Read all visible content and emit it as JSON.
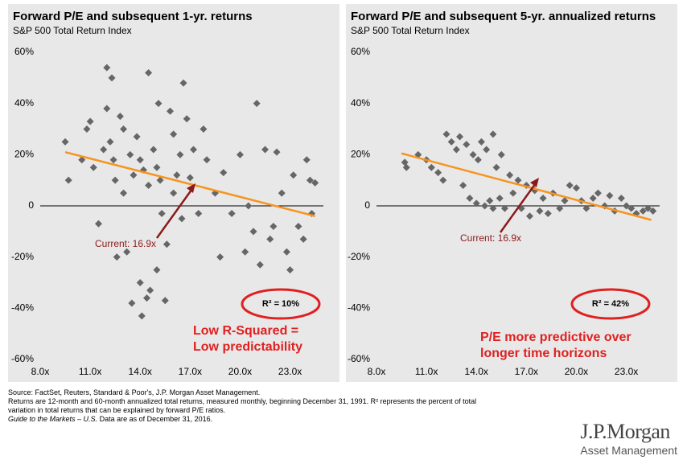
{
  "chart_data": [
    {
      "type": "scatter",
      "title": "Forward P/E and subsequent 1-yr. returns",
      "subtitle": "S&P 500 Total Return Index",
      "color": "#666666",
      "x": [
        9.5,
        9.7,
        10.5,
        10.8,
        11,
        11.2,
        11.5,
        11.8,
        12,
        12.2,
        12,
        12.3,
        12.4,
        12.5,
        12.6,
        12.8,
        13,
        13,
        13.2,
        13.4,
        13.5,
        13.6,
        13.8,
        14,
        14,
        14.1,
        14.2,
        14.4,
        14.5,
        14.5,
        14.6,
        14.8,
        15,
        15,
        15.1,
        15.2,
        15.3,
        15.5,
        15.6,
        15.8,
        16,
        16,
        16.2,
        16.4,
        16.5,
        16.6,
        16.8,
        17,
        17.2,
        17.5,
        17.8,
        18,
        18.5,
        18.8,
        19,
        19.5,
        20,
        20.3,
        20.5,
        20.8,
        21,
        21.2,
        21.5,
        21.8,
        22,
        22.2,
        22.5,
        22.8,
        23,
        23.2,
        23.5,
        23.8,
        24,
        24.2,
        24.5,
        24.3
      ],
      "values": [
        25,
        10,
        18,
        30,
        33,
        15,
        -7,
        22,
        38,
        25,
        54,
        50,
        18,
        10,
        -20,
        35,
        30,
        5,
        -18,
        20,
        -38,
        12,
        27,
        -30,
        18,
        -43,
        14,
        -36,
        8,
        52,
        -33,
        22,
        15,
        -25,
        40,
        10,
        -3,
        -37,
        -15,
        37,
        5,
        28,
        12,
        20,
        -5,
        48,
        34,
        11,
        22,
        -3,
        30,
        18,
        5,
        -20,
        13,
        -3,
        20,
        -18,
        0,
        -10,
        40,
        -23,
        22,
        -13,
        -8,
        21,
        5,
        -18,
        -25,
        12,
        -8,
        -13,
        18,
        10,
        9,
        -3
      ],
      "trend": {
        "x": [
          9.5,
          24.5
        ],
        "values": [
          21,
          -4
        ],
        "color": "#f7941d"
      },
      "xlim": [
        8,
        25
      ],
      "ylim": [
        -60,
        60
      ],
      "xticks": [
        {
          "value": 8,
          "label": "8.0x"
        },
        {
          "value": 11,
          "label": "11.0x"
        },
        {
          "value": 14,
          "label": "14.0x"
        },
        {
          "value": 17,
          "label": "17.0x"
        },
        {
          "value": 20,
          "label": "20.0x"
        },
        {
          "value": 23,
          "label": "23.0x"
        }
      ],
      "yticks": [
        {
          "value": 60,
          "label": "60%"
        },
        {
          "value": 40,
          "label": "40%"
        },
        {
          "value": 20,
          "label": "20%"
        },
        {
          "value": 0,
          "label": "0"
        },
        {
          "value": -20,
          "label": "-20%"
        },
        {
          "value": -40,
          "label": "-40%"
        },
        {
          "value": -60,
          "label": "-60%"
        }
      ],
      "current_label": "Current: 16.9x",
      "r_squared": "R² = 10%",
      "callout": [
        "Low R-Squared =",
        "Low predictability"
      ]
    },
    {
      "type": "scatter",
      "title": "Forward P/E and subsequent 5-yr. annualized returns",
      "subtitle": "S&P 500 Total Return Index",
      "color": "#666666",
      "x": [
        9.7,
        9.8,
        10.5,
        11,
        11.3,
        11.7,
        12,
        12.2,
        12.5,
        12.8,
        13,
        13.2,
        13.4,
        13.6,
        13.8,
        14,
        14.1,
        14.3,
        14.5,
        14.6,
        14.8,
        15,
        15,
        15.2,
        15.4,
        15.5,
        15.7,
        16,
        16.2,
        16.5,
        16.7,
        17,
        17.2,
        17.5,
        17.8,
        18,
        18.3,
        18.6,
        19,
        19.3,
        19.6,
        20,
        20.3,
        20.6,
        21,
        21.3,
        21.7,
        22,
        22.3,
        22.7,
        23,
        23.3,
        23.6,
        24,
        24.3,
        24.6
      ],
      "values": [
        17,
        15,
        20,
        18,
        15,
        13,
        10,
        28,
        25,
        22,
        27,
        8,
        24,
        3,
        20,
        1,
        18,
        25,
        0,
        22,
        2,
        28,
        -1,
        15,
        3,
        20,
        -1,
        12,
        5,
        10,
        -1,
        8,
        -4,
        6,
        -2,
        3,
        -3,
        5,
        -1,
        2,
        8,
        7,
        2,
        -1,
        3,
        5,
        0,
        4,
        -2,
        3,
        0,
        -1,
        -3,
        -2,
        -1,
        -2
      ],
      "trend": {
        "x": [
          9.5,
          24.5
        ],
        "values": [
          20.5,
          -5.5
        ],
        "color": "#f7941d"
      },
      "xlim": [
        8,
        25
      ],
      "ylim": [
        -60,
        60
      ],
      "xticks": [
        {
          "value": 8,
          "label": "8.0x"
        },
        {
          "value": 11,
          "label": "11.0x"
        },
        {
          "value": 14,
          "label": "14.0x"
        },
        {
          "value": 17,
          "label": "17.0x"
        },
        {
          "value": 20,
          "label": "20.0x"
        },
        {
          "value": 23,
          "label": "23.0x"
        }
      ],
      "yticks": [
        {
          "value": 60,
          "label": "60%"
        },
        {
          "value": 40,
          "label": "40%"
        },
        {
          "value": 20,
          "label": "20%"
        },
        {
          "value": 0,
          "label": "0"
        },
        {
          "value": -20,
          "label": "-20%"
        },
        {
          "value": -40,
          "label": "-40%"
        },
        {
          "value": -60,
          "label": "-60%"
        }
      ],
      "current_label": "Current: 16.9x",
      "r_squared": "R² = 42%",
      "callout": [
        "P/E more predictive over",
        "longer time horizons"
      ]
    }
  ],
  "footer": {
    "lines": [
      "Source: FactSet, Reuters, Standard & Poor's, J.P. Morgan Asset Management.",
      "Returns are 12-month and 60-month annualized total returns, measured monthly, beginning December 31, 1991. R² represents the percent of total",
      "variation in total returns that can be explained by forward P/E ratios."
    ],
    "guide": "Guide to the Markets – U.S.",
    "date_note": " Data are as of December 31, 2016."
  },
  "logo": {
    "name": "J.P.Morgan",
    "tagline": "Asset Management"
  }
}
